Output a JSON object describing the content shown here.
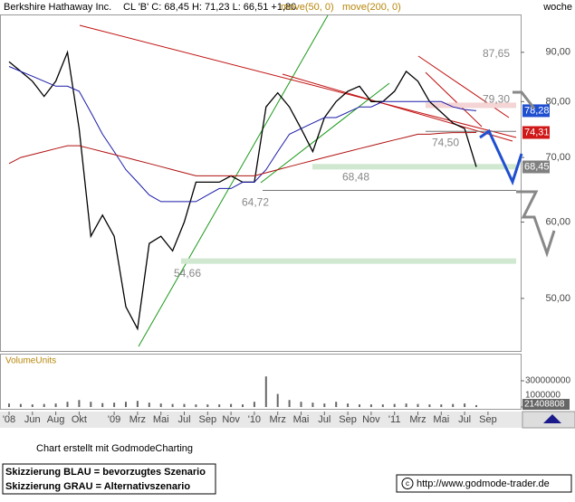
{
  "chart_data": {
    "type": "line",
    "title": "Berkshire Hathaway Inc.",
    "quote": "CL 'B' C: 68,45 H: 71,23 L: 66,51 +1,80",
    "period": "woche",
    "log_scale": true,
    "grid": false,
    "categories": [
      "'08",
      null,
      "Jun",
      null,
      "Aug",
      null,
      "Okt",
      null,
      null,
      "'09",
      null,
      "Mrz",
      null,
      "Mai",
      null,
      "Jul",
      null,
      "Sep",
      null,
      "Nov",
      null,
      "'10",
      null,
      "Mrz",
      null,
      "Mai",
      null,
      "Jul",
      null,
      "Sep",
      null,
      "Nov",
      null,
      "'11",
      null,
      "Mrz",
      null,
      "Mai",
      null,
      "Jul",
      null,
      "Sep"
    ],
    "ylim": [
      44.1,
      98.3
    ],
    "yticks": [
      {
        "value": 90,
        "label": "90,00"
      },
      {
        "value": 80,
        "label": "80,00"
      },
      {
        "value": 70,
        "label": "70,00"
      },
      {
        "value": 60,
        "label": "60,00"
      },
      {
        "value": 50,
        "label": "50,00"
      }
    ],
    "series": [
      {
        "color": "#000000",
        "values": [
          88,
          86,
          84,
          81,
          84,
          90,
          75,
          58,
          61,
          58,
          49,
          46.5,
          57,
          58,
          56,
          60,
          66,
          66,
          66,
          67,
          66,
          66,
          79,
          81.7,
          79,
          75,
          71,
          77,
          80,
          82,
          83,
          80,
          80,
          82,
          86,
          84,
          80,
          78,
          76,
          75,
          68.45,
          null
        ],
        "last_label": "68,45",
        "box_color": "#808080"
      },
      {
        "name": "move(50, 0)",
        "color": "#1a1aa8",
        "values": [
          87,
          86,
          85,
          84,
          83,
          83,
          82,
          78,
          74,
          71,
          68,
          66,
          64,
          63,
          63,
          63,
          63,
          64,
          65,
          65,
          66,
          66,
          68,
          71,
          74,
          75,
          76,
          77,
          77,
          78,
          79,
          79,
          80,
          80,
          80,
          80,
          80,
          80,
          79,
          78.5,
          78.28,
          null
        ],
        "last_label": "78,28",
        "box_color": "#1f4fd0"
      },
      {
        "name": "move(200, 0)",
        "color": "#b01010",
        "values": [
          69,
          70,
          70.5,
          71,
          71.5,
          72,
          72,
          71.5,
          71,
          70.5,
          70,
          69.5,
          69,
          68.5,
          68,
          67.5,
          67,
          67,
          67,
          67,
          67,
          67,
          67.5,
          68,
          68.5,
          69,
          69.5,
          70,
          70.5,
          71,
          71.5,
          72,
          72.5,
          73,
          73.5,
          74,
          74,
          74.2,
          74.3,
          74.3,
          74.31,
          null
        ],
        "last_label": "74,31",
        "box_color": "#d01818"
      }
    ],
    "annotations": [
      {
        "value": 87.65,
        "label": "87,65"
      },
      {
        "value": 79.3,
        "label": "79,30"
      },
      {
        "value": 74.5,
        "label": "74,50"
      },
      {
        "value": 68.48,
        "label": "68,48"
      },
      {
        "value": 64.72,
        "label": "64,72"
      },
      {
        "value": 54.66,
        "label": "54,66"
      }
    ],
    "volume": {
      "title": "VolumeUnits",
      "color": "#666666",
      "values": [
        40000000,
        35000000,
        30000000,
        35000000,
        40000000,
        60000000,
        80000000,
        60000000,
        45000000,
        50000000,
        60000000,
        70000000,
        50000000,
        40000000,
        35000000,
        35000000,
        30000000,
        30000000,
        30000000,
        35000000,
        30000000,
        60000000,
        350000000,
        150000000,
        80000000,
        60000000,
        50000000,
        40000000,
        60000000,
        40000000,
        30000000,
        30000000,
        30000000,
        35000000,
        40000000,
        35000000,
        30000000,
        30000000,
        35000000,
        40000000,
        21408808,
        null
      ],
      "ylim": [
        0,
        600000000
      ],
      "yticks": [
        300000000,
        1000000
      ]
    },
    "credit": "Chart erstellt mit GodmodeCharting",
    "notes": [
      "Skizzierung BLAU = bevorzugtes Szenario",
      "Skizzierung GRAU = Alternativszenario"
    ],
    "source": "http://www.godmode-trader.de"
  }
}
